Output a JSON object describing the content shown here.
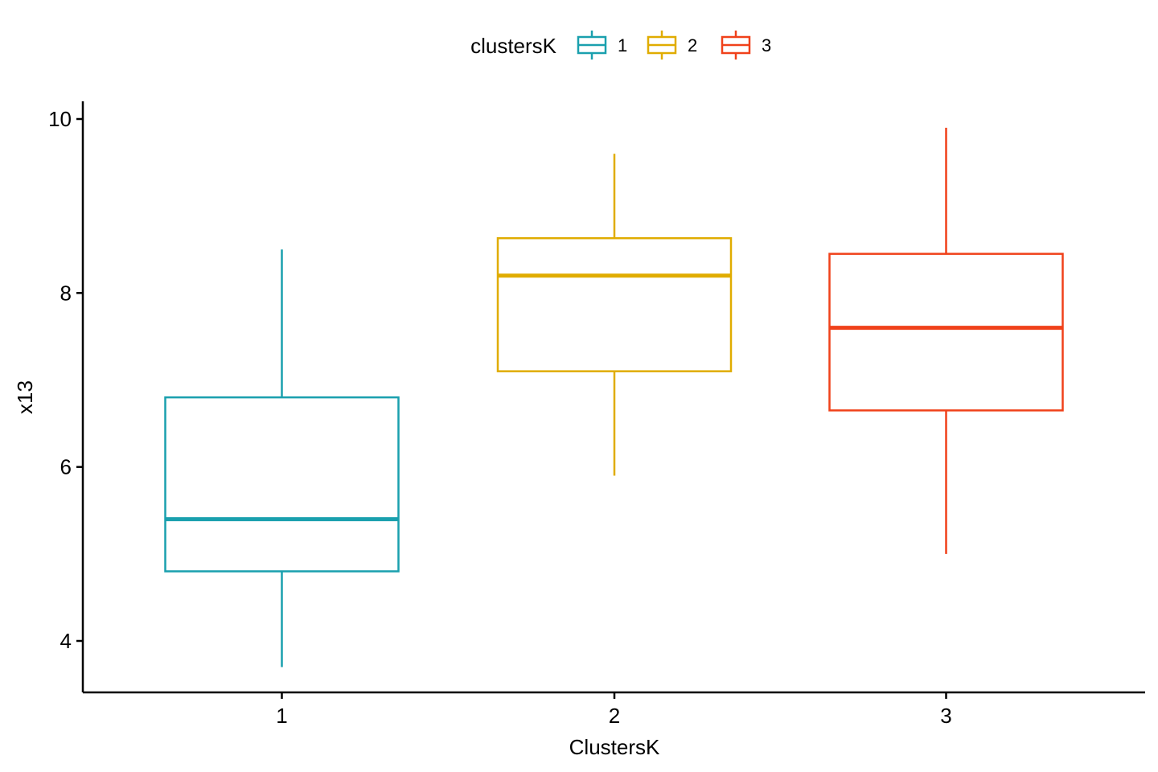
{
  "chart_data": {
    "type": "box",
    "xlabel": "ClustersK",
    "ylabel": "x13",
    "categories": [
      "1",
      "2",
      "3"
    ],
    "ylim": [
      3.4,
      10.2
    ],
    "yticks": [
      4,
      6,
      8,
      10
    ],
    "grid": false,
    "legend": {
      "title": "clustersK",
      "position": "top",
      "entries": [
        "1",
        "2",
        "3"
      ]
    },
    "boxes": [
      {
        "category": "1",
        "color": "#1AA0AE",
        "lower_whisker": 3.7,
        "q1": 4.8,
        "median": 5.4,
        "q3": 6.8,
        "upper_whisker": 8.5
      },
      {
        "category": "2",
        "color": "#E0AC00",
        "lower_whisker": 5.9,
        "q1": 7.1,
        "median": 8.2,
        "q3": 8.63,
        "upper_whisker": 9.6
      },
      {
        "category": "3",
        "color": "#F0411A",
        "lower_whisker": 5.0,
        "q1": 6.65,
        "median": 7.6,
        "q3": 8.45,
        "upper_whisker": 9.9
      }
    ]
  }
}
